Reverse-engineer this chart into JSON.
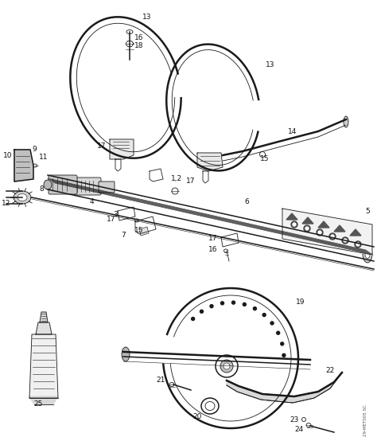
{
  "background_color": "#ffffff",
  "line_color": "#1a1a1a",
  "label_color": "#111111",
  "watermark": "29-MET005 SC",
  "fig_width": 4.74,
  "fig_height": 5.54,
  "dpi": 100,
  "lw_thick": 1.8,
  "lw_med": 1.1,
  "lw_thin": 0.6,
  "lw_hair": 0.4,
  "label_fs": 6.5,
  "xlim": [
    0,
    474
  ],
  "ylim": [
    0,
    554
  ]
}
